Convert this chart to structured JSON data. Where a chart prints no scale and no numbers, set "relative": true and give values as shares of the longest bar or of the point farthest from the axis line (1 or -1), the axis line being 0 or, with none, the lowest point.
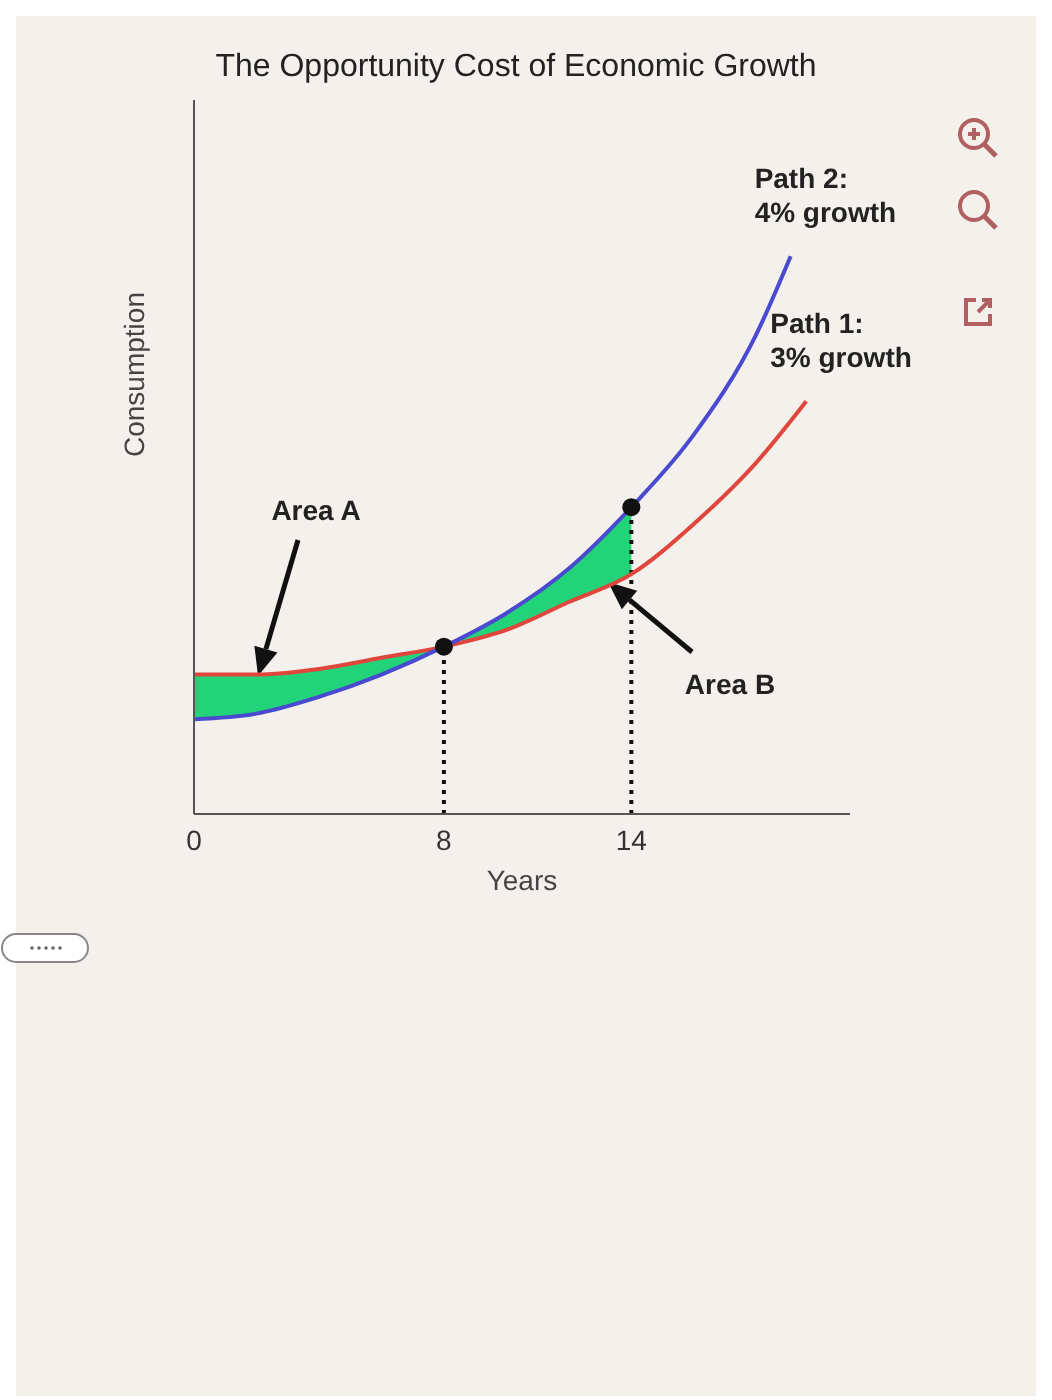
{
  "chart_data": {
    "type": "line",
    "title": "The Opportunity Cost of Economic Growth",
    "xlabel": "Years",
    "ylabel": "Consumption",
    "relative": true,
    "tick_labels": "x",
    "xlim": [
      0,
      21
    ],
    "xticks": [
      0,
      8,
      14
    ],
    "series": [
      {
        "type": "area",
        "color": "#22d37a",
        "x": [
          0,
          2,
          4,
          6,
          8,
          10,
          12,
          14
        ],
        "values": [
          0.25,
          0.25,
          0.26,
          0.28,
          0.3,
          0.36,
          0.44,
          0.55
        ]
      },
      {
        "name": "Path 1: 3% growth",
        "color": "#e0463c",
        "x": [
          0,
          2,
          4,
          6,
          8,
          10,
          12,
          14,
          16,
          18,
          19.6
        ],
        "values": [
          0.25,
          0.25,
          0.26,
          0.28,
          0.3,
          0.33,
          0.38,
          0.43,
          0.52,
          0.63,
          0.74
        ]
      },
      {
        "name": "Path 2: 4% growth",
        "color": "#4a4ad0",
        "x": [
          0,
          2,
          4,
          6,
          8,
          10,
          12,
          14,
          16,
          18,
          19.1
        ],
        "values": [
          0.17,
          0.18,
          0.21,
          0.25,
          0.3,
          0.36,
          0.44,
          0.55,
          0.68,
          0.86,
          1
        ]
      },
      {
        "type": "scatter",
        "color": "#111111",
        "marker": "circle",
        "x": [
          8,
          14
        ],
        "values": [
          0.3,
          0.55
        ]
      }
    ],
    "ref_lines": [
      {
        "axis": "x",
        "value": 8,
        "color": "#111111",
        "line_style": "dotted"
      },
      {
        "axis": "x",
        "value": 14,
        "color": "#111111",
        "line_style": "dotted"
      }
    ],
    "annotations": [
      "Area A",
      "Area B"
    ]
  }
}
